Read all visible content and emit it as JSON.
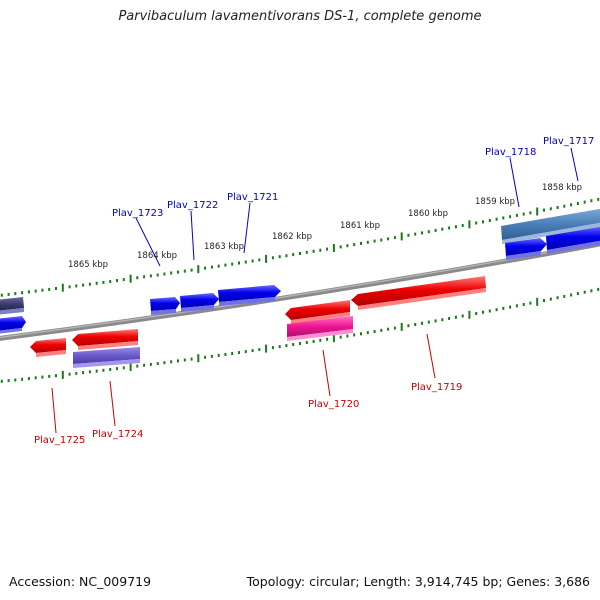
{
  "title": "Parvibaculum lavamentivorans DS-1, complete genome",
  "footer": {
    "accession": "Accession: NC_009719",
    "summary": "Topology: circular; Length: 3,914,745 bp; Genes: 3,686"
  },
  "colors": {
    "forward_label": "#0000c8",
    "reverse_label": "#c80000",
    "backbone": "#808080",
    "tick": "#1a7a1a"
  },
  "scale_labels": [
    "1858 kbp",
    "1859 kbp",
    "1860 kbp",
    "1861 kbp",
    "1862 kbp",
    "1863 kbp",
    "1864 kbp",
    "1865 kbp"
  ],
  "forward_gene_labels": [
    "Plav_1717",
    "Plav_1718",
    "Plav_1721",
    "Plav_1722",
    "Plav_1723"
  ],
  "reverse_gene_labels": [
    "Plav_1719",
    "Plav_1720",
    "Plav_1724",
    "Plav_1725"
  ]
}
